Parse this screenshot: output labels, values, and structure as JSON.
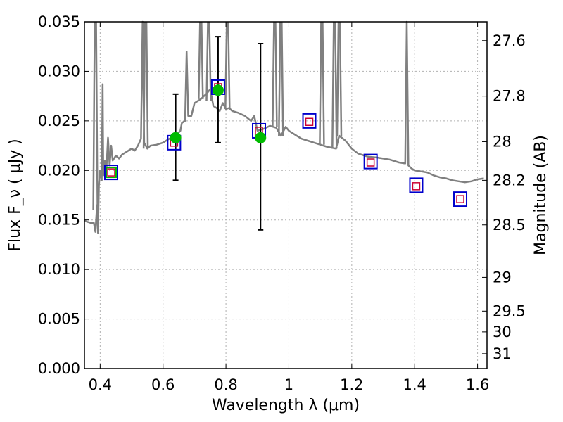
{
  "chart_data": {
    "type": "scatter",
    "xlabel": "Wavelength  λ (μm)",
    "ylabel": "Flux  F_ν  ( μJy )",
    "y2label": "Magnitude (AB)",
    "xlim": [
      0.35,
      1.63
    ],
    "ylim": [
      0.0,
      0.035
    ],
    "grid": true,
    "colors": {
      "spectrum": "#808080",
      "filter_box": "#0000cc",
      "model_box": "#cc0033",
      "observed": "#00bb00",
      "errorbar": "#000000"
    },
    "x_ticks": [
      {
        "value": 0.4,
        "label": "0.4"
      },
      {
        "value": 0.6,
        "label": "0.6"
      },
      {
        "value": 0.8,
        "label": "0.8"
      },
      {
        "value": 1.0,
        "label": "1"
      },
      {
        "value": 1.2,
        "label": "1.2"
      },
      {
        "value": 1.4,
        "label": "1.4"
      },
      {
        "value": 1.6,
        "label": "1.6"
      }
    ],
    "y_ticks": [
      {
        "value": 0.0,
        "label": "0.000"
      },
      {
        "value": 0.005,
        "label": "0.005"
      },
      {
        "value": 0.01,
        "label": "0.010"
      },
      {
        "value": 0.015,
        "label": "0.015"
      },
      {
        "value": 0.02,
        "label": "0.020"
      },
      {
        "value": 0.025,
        "label": "0.025"
      },
      {
        "value": 0.03,
        "label": "0.030"
      },
      {
        "value": 0.035,
        "label": "0.035"
      }
    ],
    "mag_ticks": [
      {
        "flux": 0.0331,
        "label": "27.6"
      },
      {
        "flux": 0.0275,
        "label": "27.8"
      },
      {
        "flux": 0.0229,
        "label": "28"
      },
      {
        "flux": 0.019,
        "label": "28.2"
      },
      {
        "flux": 0.0145,
        "label": "28.5"
      },
      {
        "flux": 0.0092,
        "label": "29"
      },
      {
        "flux": 0.0058,
        "label": "29.5"
      },
      {
        "flux": 0.0037,
        "label": "30"
      },
      {
        "flux": 0.0015,
        "label": "31"
      }
    ],
    "series": [
      {
        "kind": "spectrum",
        "points": [
          [
            0.35,
            0.0149
          ],
          [
            0.37,
            0.0147
          ],
          [
            0.38,
            0.0147
          ],
          [
            0.385,
            0.0138
          ],
          [
            0.39,
            0.0165
          ],
          [
            0.393,
            0.0137
          ],
          [
            0.396,
            0.0185
          ],
          [
            0.4,
            0.02
          ],
          [
            0.405,
            0.019
          ],
          [
            0.408,
            0.0287
          ],
          [
            0.41,
            0.0195
          ],
          [
            0.415,
            0.021
          ],
          [
            0.42,
            0.0202
          ],
          [
            0.425,
            0.0233
          ],
          [
            0.43,
            0.0205
          ],
          [
            0.435,
            0.0225
          ],
          [
            0.44,
            0.021
          ],
          [
            0.45,
            0.0215
          ],
          [
            0.46,
            0.0212
          ],
          [
            0.47,
            0.0216
          ],
          [
            0.48,
            0.0218
          ],
          [
            0.49,
            0.022
          ],
          [
            0.5,
            0.0222
          ],
          [
            0.51,
            0.022
          ],
          [
            0.52,
            0.0225
          ],
          [
            0.53,
            0.0232
          ],
          [
            0.535,
            0.035
          ],
          [
            0.54,
            0.0228
          ],
          [
            0.55,
            0.0222
          ],
          [
            0.56,
            0.0225
          ],
          [
            0.58,
            0.0226
          ],
          [
            0.6,
            0.0228
          ],
          [
            0.62,
            0.0232
          ],
          [
            0.64,
            0.0235
          ],
          [
            0.655,
            0.024
          ],
          [
            0.66,
            0.0248
          ],
          [
            0.67,
            0.025
          ],
          [
            0.675,
            0.032
          ],
          [
            0.68,
            0.0255
          ],
          [
            0.69,
            0.0255
          ],
          [
            0.7,
            0.0268
          ],
          [
            0.71,
            0.027
          ],
          [
            0.72,
            0.0272
          ],
          [
            0.73,
            0.0275
          ],
          [
            0.74,
            0.0278
          ],
          [
            0.75,
            0.0282
          ],
          [
            0.76,
            0.0265
          ],
          [
            0.77,
            0.0263
          ],
          [
            0.78,
            0.026
          ],
          [
            0.79,
            0.0268
          ],
          [
            0.8,
            0.0262
          ],
          [
            0.81,
            0.0263
          ],
          [
            0.82,
            0.026
          ],
          [
            0.84,
            0.0258
          ],
          [
            0.86,
            0.0255
          ],
          [
            0.88,
            0.025
          ],
          [
            0.89,
            0.0255
          ],
          [
            0.9,
            0.024
          ],
          [
            0.92,
            0.0242
          ],
          [
            0.94,
            0.0245
          ],
          [
            0.95,
            0.0244
          ],
          [
            0.96,
            0.0243
          ],
          [
            0.975,
            0.0235
          ],
          [
            0.99,
            0.0244
          ],
          [
            1.0,
            0.024
          ],
          [
            1.02,
            0.0236
          ],
          [
            1.04,
            0.0232
          ],
          [
            1.06,
            0.023
          ],
          [
            1.08,
            0.0228
          ],
          [
            1.1,
            0.0226
          ],
          [
            1.12,
            0.0224
          ],
          [
            1.15,
            0.0222
          ],
          [
            1.16,
            0.0235
          ],
          [
            1.18,
            0.023
          ],
          [
            1.2,
            0.0222
          ],
          [
            1.22,
            0.0217
          ],
          [
            1.25,
            0.0214
          ],
          [
            1.28,
            0.0213
          ],
          [
            1.3,
            0.0212
          ],
          [
            1.32,
            0.0211
          ],
          [
            1.35,
            0.0208
          ],
          [
            1.37,
            0.0207
          ],
          [
            1.375,
            0.035
          ],
          [
            1.38,
            0.0205
          ],
          [
            1.39,
            0.0202
          ],
          [
            1.4,
            0.02
          ],
          [
            1.42,
            0.0199
          ],
          [
            1.44,
            0.0198
          ],
          [
            1.46,
            0.0195
          ],
          [
            1.48,
            0.0193
          ],
          [
            1.5,
            0.0192
          ],
          [
            1.52,
            0.019
          ],
          [
            1.54,
            0.0189
          ],
          [
            1.56,
            0.0188
          ],
          [
            1.58,
            0.0189
          ],
          [
            1.6,
            0.0191
          ],
          [
            1.62,
            0.0192
          ]
        ],
        "spikes": [
          {
            "x": 0.385,
            "y0": 0.016,
            "y1": 0.035
          },
          {
            "x": 0.545,
            "y0": 0.0222,
            "y1": 0.035
          },
          {
            "x": 0.72,
            "y0": 0.0272,
            "y1": 0.035
          },
          {
            "x": 0.745,
            "y0": 0.027,
            "y1": 0.035
          },
          {
            "x": 0.805,
            "y0": 0.0262,
            "y1": 0.035
          },
          {
            "x": 0.955,
            "y0": 0.0244,
            "y1": 0.035
          },
          {
            "x": 0.975,
            "y0": 0.0235,
            "y1": 0.035
          },
          {
            "x": 1.105,
            "y0": 0.0226,
            "y1": 0.035
          },
          {
            "x": 1.145,
            "y0": 0.0222,
            "y1": 0.035
          },
          {
            "x": 1.16,
            "y0": 0.0235,
            "y1": 0.035
          }
        ]
      },
      {
        "kind": "filter_boxes",
        "points": [
          {
            "x": 0.435,
            "y": 0.0198
          },
          {
            "x": 0.635,
            "y": 0.0228
          },
          {
            "x": 0.775,
            "y": 0.0284
          },
          {
            "x": 0.905,
            "y": 0.024
          },
          {
            "x": 1.065,
            "y": 0.025
          },
          {
            "x": 1.26,
            "y": 0.0209
          },
          {
            "x": 1.405,
            "y": 0.0185
          },
          {
            "x": 1.545,
            "y": 0.0171
          }
        ]
      },
      {
        "kind": "model_points",
        "points": [
          {
            "x": 0.435,
            "y": 0.0198
          },
          {
            "x": 0.635,
            "y": 0.0228
          },
          {
            "x": 0.775,
            "y": 0.0284
          },
          {
            "x": 0.905,
            "y": 0.024
          },
          {
            "x": 1.065,
            "y": 0.0249
          },
          {
            "x": 1.26,
            "y": 0.0208
          },
          {
            "x": 1.405,
            "y": 0.0184
          },
          {
            "x": 1.545,
            "y": 0.0171
          }
        ]
      },
      {
        "kind": "observed",
        "points": [
          {
            "x": 0.435,
            "y": 0.0198,
            "err_lo": 0.0198,
            "err_hi": 0.0198
          },
          {
            "x": 0.64,
            "y": 0.0233,
            "err_lo": 0.019,
            "err_hi": 0.0277
          },
          {
            "x": 0.775,
            "y": 0.0281,
            "err_lo": 0.0228,
            "err_hi": 0.0335
          },
          {
            "x": 0.91,
            "y": 0.0233,
            "err_lo": 0.014,
            "err_hi": 0.0328
          }
        ]
      }
    ]
  }
}
